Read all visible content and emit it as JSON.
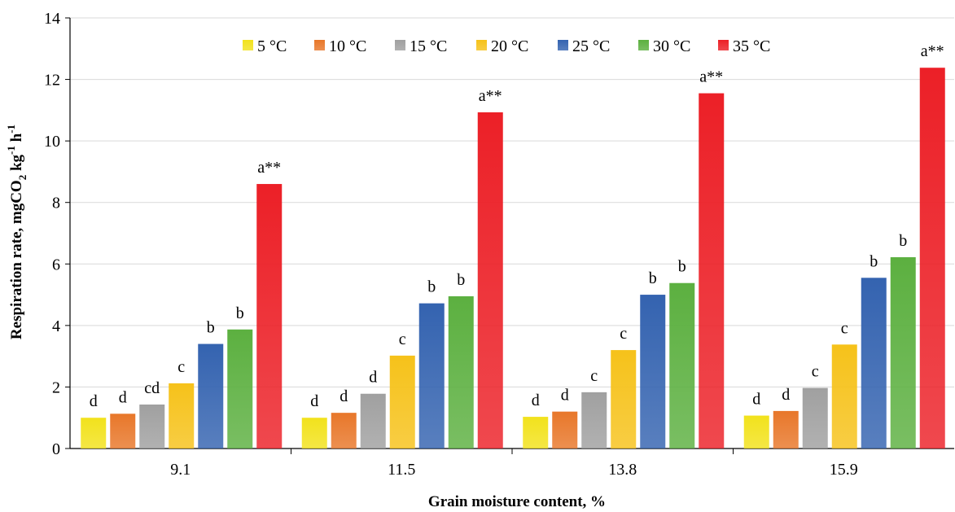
{
  "chart_data": {
    "type": "bar",
    "xlabel": "Grain moisture content, %",
    "ylabel": {
      "main": "Respiration rate, mgCO",
      "sub": "2",
      "mid": " kg",
      "sup1": "-1",
      "end": " h",
      "sup2": "-1"
    },
    "ylim": [
      0,
      14
    ],
    "yticks": [
      "0",
      "2",
      "4",
      "6",
      "8",
      "10",
      "12",
      "14"
    ],
    "categories": [
      "9.1",
      "11.5",
      "13.8",
      "15.9"
    ],
    "legend_position": "top",
    "series": [
      {
        "name": "5 °C",
        "color": "#f2e21c",
        "values": [
          1.0,
          1.0,
          1.03,
          1.07
        ],
        "letters": [
          "d",
          "d",
          "d",
          "d"
        ]
      },
      {
        "name": "10 °C",
        "color": "#e8772a",
        "values": [
          1.13,
          1.16,
          1.2,
          1.22
        ],
        "letters": [
          "d",
          "d",
          "d",
          "d"
        ]
      },
      {
        "name": "15 °C",
        "color": "#a0a0a0",
        "values": [
          1.43,
          1.78,
          1.83,
          1.97
        ],
        "letters": [
          "cd",
          "d",
          "c",
          "c"
        ]
      },
      {
        "name": "20 °C",
        "color": "#f6c21a",
        "values": [
          2.12,
          3.02,
          3.2,
          3.38
        ],
        "letters": [
          "c",
          "c",
          "c",
          "c"
        ]
      },
      {
        "name": "25 °C",
        "color": "#3463b0",
        "values": [
          3.4,
          4.72,
          5.0,
          5.55
        ],
        "letters": [
          "b",
          "b",
          "b",
          "b"
        ]
      },
      {
        "name": "30 °C",
        "color": "#5cb040",
        "values": [
          3.87,
          4.95,
          5.38,
          6.22
        ],
        "letters": [
          "b",
          "b",
          "b",
          "b"
        ]
      },
      {
        "name": "35 °C",
        "color": "#ec2027",
        "values": [
          8.6,
          10.93,
          11.55,
          12.38
        ],
        "letters": [
          "a**",
          "a**",
          "a**",
          "a**"
        ]
      }
    ]
  }
}
